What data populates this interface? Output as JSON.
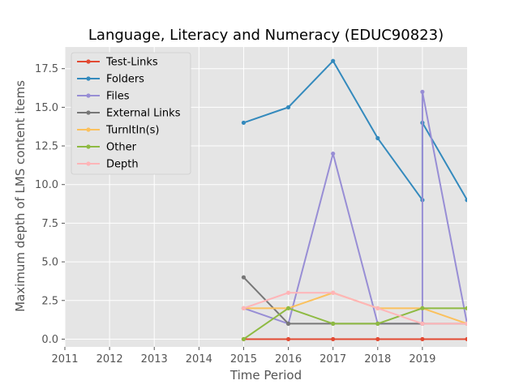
{
  "chart_data": {
    "type": "line",
    "title": "Language, Literacy and Numeracy (EDUC90823)",
    "xlabel": "Time Period",
    "ylabel": "Maximum depth of LMS content items",
    "xlim": [
      2011,
      2020
    ],
    "ylim": [
      -0.5,
      18.9
    ],
    "xticks": [
      2011,
      2012,
      2013,
      2014,
      2015,
      2016,
      2017,
      2018,
      2019
    ],
    "xtick_labels": [
      "2011",
      "2012",
      "2013",
      "2014",
      "2015",
      "2016",
      "2017",
      "2018",
      "2019"
    ],
    "yticks": [
      0,
      2.5,
      5,
      7.5,
      10,
      12.5,
      15,
      17.5
    ],
    "ytick_labels": [
      "0.0",
      "2.5",
      "5.0",
      "7.5",
      "10.0",
      "12.5",
      "15.0",
      "17.5"
    ],
    "grid": true,
    "legend_position": "upper-left",
    "series": [
      {
        "name": "Test-Links",
        "color": "#E24A33",
        "points": [
          [
            2015,
            0
          ],
          [
            2016,
            0
          ],
          [
            2017,
            0
          ],
          [
            2018,
            0
          ],
          [
            2019,
            0
          ],
          [
            2020,
            0
          ]
        ]
      },
      {
        "name": "Folders",
        "color": "#348ABD",
        "points": [
          [
            2015,
            14
          ],
          [
            2016,
            15
          ],
          [
            2017,
            18
          ],
          [
            2018,
            13
          ],
          [
            2019,
            9
          ],
          [
            2019,
            14
          ],
          [
            2020,
            9
          ]
        ]
      },
      {
        "name": "Files",
        "color": "#988ED5",
        "points": [
          [
            2015,
            2
          ],
          [
            2016,
            1
          ],
          [
            2017,
            12
          ],
          [
            2018,
            1
          ],
          [
            2019,
            1
          ],
          [
            2019,
            16
          ],
          [
            2020,
            1
          ]
        ]
      },
      {
        "name": "External Links",
        "color": "#777777",
        "points": [
          [
            2015,
            4
          ],
          [
            2016,
            1
          ],
          [
            2017,
            1
          ],
          [
            2018,
            1
          ],
          [
            2019,
            1
          ],
          [
            2020,
            1
          ]
        ]
      },
      {
        "name": "TurnItIn(s)",
        "color": "#FBC15E",
        "points": [
          [
            2015,
            2
          ],
          [
            2016,
            2
          ],
          [
            2017,
            3
          ],
          [
            2018,
            2
          ],
          [
            2019,
            2
          ],
          [
            2020,
            1
          ]
        ]
      },
      {
        "name": "Other",
        "color": "#8EBA42",
        "points": [
          [
            2015,
            0
          ],
          [
            2016,
            2
          ],
          [
            2017,
            1
          ],
          [
            2018,
            1
          ],
          [
            2019,
            2
          ],
          [
            2020,
            2
          ]
        ]
      },
      {
        "name": "Depth",
        "color": "#FFB5B8",
        "points": [
          [
            2015,
            2
          ],
          [
            2016,
            3
          ],
          [
            2017,
            3
          ],
          [
            2018,
            2
          ],
          [
            2019,
            1
          ],
          [
            2020,
            1
          ]
        ]
      }
    ]
  }
}
